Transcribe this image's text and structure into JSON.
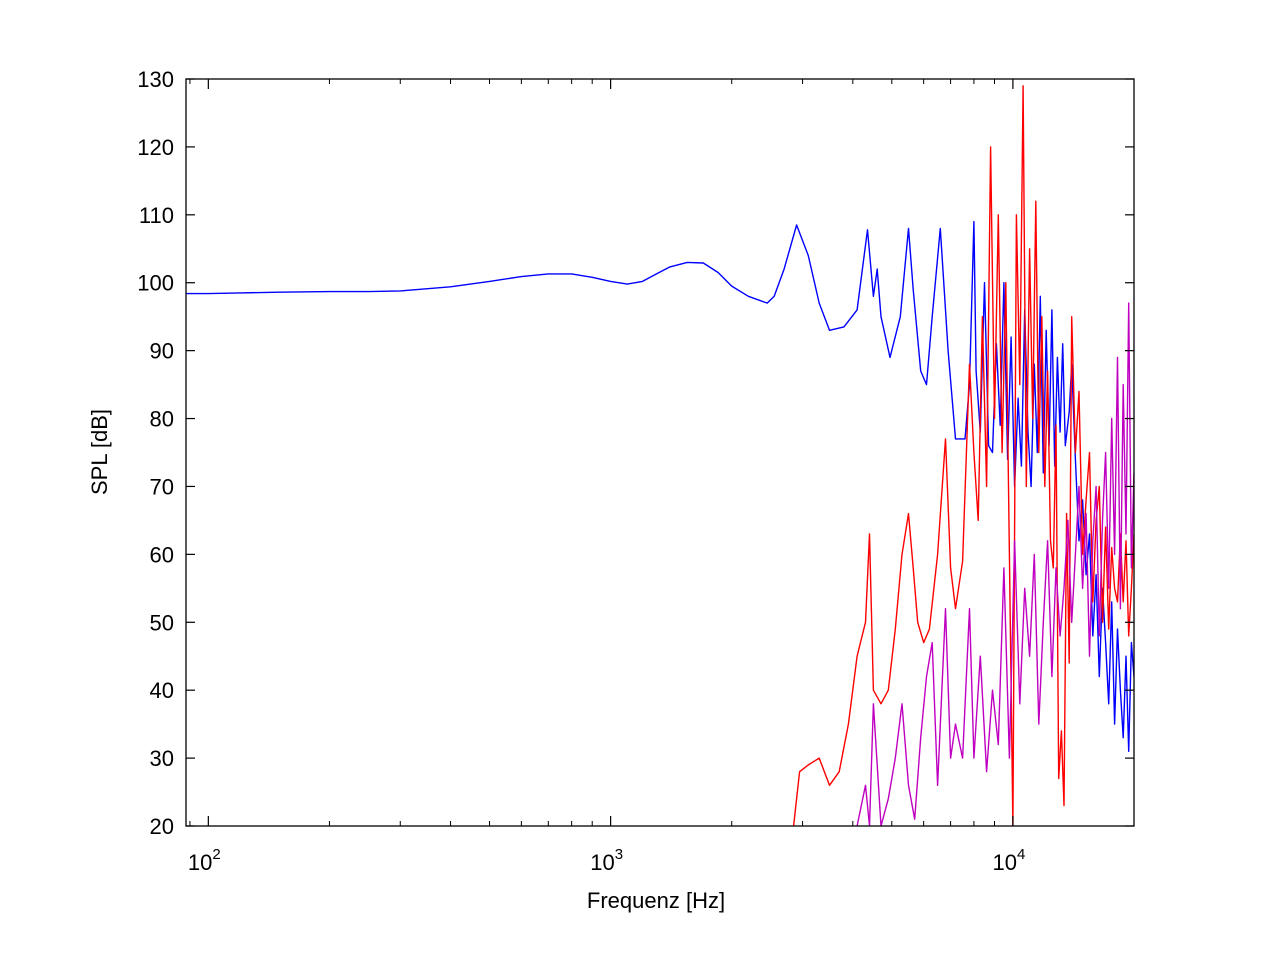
{
  "chart_data": {
    "type": "line",
    "xscale": "log",
    "xlabel": "Frequenz [Hz]",
    "ylabel": "SPL [dB]",
    "xlim": [
      88,
      20000
    ],
    "ylim": [
      20,
      130
    ],
    "yticks": [
      20,
      30,
      40,
      50,
      60,
      70,
      80,
      90,
      100,
      110,
      120,
      130
    ],
    "xticks": [
      {
        "value": 100,
        "base": "10",
        "exp": "2"
      },
      {
        "value": 1000,
        "base": "10",
        "exp": "3"
      },
      {
        "value": 10000,
        "base": "10",
        "exp": "4"
      }
    ],
    "grid": false,
    "legend": "none",
    "series": [
      {
        "color": "#0000ff",
        "x": [
          88,
          100,
          120,
          150,
          200,
          250,
          300,
          400,
          500,
          600,
          700,
          800,
          900,
          1000,
          1100,
          1200,
          1300,
          1400,
          1550,
          1700,
          1850,
          2000,
          2200,
          2450,
          2550,
          2700,
          2900,
          3100,
          3300,
          3500,
          3800,
          4100,
          4350,
          4500,
          4600,
          4700,
          4950,
          5250,
          5500,
          5650,
          5900,
          6100,
          6300,
          6600,
          6900,
          7200,
          7600,
          7800,
          8000,
          8100,
          8300,
          8500,
          8700,
          8900,
          9100,
          9300,
          9500,
          9700,
          9900,
          10100,
          10300,
          10500,
          10700,
          10900,
          11100,
          11300,
          11500,
          11700,
          11900,
          12100,
          12300,
          12500,
          12700,
          12900,
          13100,
          13300,
          13500,
          13800,
          14000,
          14300,
          14600,
          14900,
          15200,
          15500,
          15800,
          16100,
          16400,
          16700,
          17000,
          17300,
          17600,
          17900,
          18200,
          18500,
          18800,
          19100,
          19400,
          19700,
          20000
        ],
        "y": [
          98.4,
          98.4,
          98.5,
          98.6,
          98.7,
          98.7,
          98.8,
          99.4,
          100.2,
          100.9,
          101.3,
          101.3,
          100.8,
          100.2,
          99.8,
          100.2,
          101.3,
          102.3,
          103.0,
          102.9,
          101.5,
          99.5,
          98.0,
          97.0,
          98.0,
          102.0,
          108.5,
          104.0,
          97.0,
          93.0,
          93.5,
          96.0,
          107.8,
          98.0,
          102.0,
          95.0,
          89.0,
          95.0,
          108.0,
          99.0,
          87.0,
          85.0,
          95.0,
          108.0,
          90.0,
          77.0,
          77.0,
          85.0,
          109.0,
          87.0,
          78.0,
          100.0,
          76.0,
          75.0,
          91.0,
          79.0,
          100.0,
          74.0,
          92.0,
          70.0,
          83.0,
          73.0,
          96.0,
          78.0,
          70.0,
          88.0,
          75.0,
          98.0,
          72.0,
          93.0,
          76.0,
          96.0,
          73.0,
          89.0,
          78.0,
          91.0,
          76.0,
          81.0,
          88.0,
          74.0,
          62.0,
          68.0,
          57.0,
          63.0,
          48.0,
          57.0,
          42.0,
          55.0,
          47.0,
          38.0,
          53.0,
          35.0,
          49.0,
          40.0,
          33.0,
          45.0,
          31.0,
          47.0,
          42.0
        ]
      },
      {
        "color": "#ff0000",
        "x": [
          2850,
          2950,
          3100,
          3300,
          3500,
          3700,
          3900,
          4100,
          4300,
          4400,
          4500,
          4700,
          4900,
          5100,
          5300,
          5500,
          5650,
          5800,
          6000,
          6200,
          6500,
          6800,
          7000,
          7200,
          7500,
          7800,
          8000,
          8200,
          8400,
          8600,
          8800,
          9000,
          9200,
          9400,
          9600,
          9800,
          10000,
          10200,
          10400,
          10600,
          10800,
          11000,
          11200,
          11400,
          11600,
          11800,
          12000,
          12200,
          12400,
          12600,
          12800,
          13000,
          13200,
          13400,
          13600,
          13800,
          14000,
          14300,
          14600,
          14900,
          15200,
          15500,
          15800,
          16100,
          16400,
          16700,
          17000,
          17300,
          17600,
          17900,
          18200,
          18500,
          18800,
          19100,
          19400,
          19700,
          20000
        ],
        "y": [
          20.0,
          28.0,
          29.0,
          30.0,
          26.0,
          28.0,
          35.0,
          45.0,
          50.0,
          63.0,
          40.0,
          38.0,
          40.0,
          49.0,
          60.0,
          66.0,
          58.0,
          50.0,
          47.0,
          49.0,
          60.0,
          77.0,
          58.0,
          52.0,
          59.0,
          88.0,
          75.0,
          65.0,
          95.0,
          70.0,
          120.0,
          80.0,
          110.0,
          75.0,
          100.0,
          60.0,
          20.0,
          110.0,
          85.0,
          129.0,
          70.0,
          105.0,
          80.0,
          112.0,
          75.0,
          95.0,
          70.0,
          87.0,
          62.0,
          58.0,
          79.0,
          27.0,
          34.0,
          23.0,
          66.0,
          44.0,
          95.0,
          75.0,
          84.0,
          60.0,
          68.0,
          75.0,
          53.0,
          65.0,
          70.0,
          50.0,
          64.0,
          49.0,
          61.0,
          55.0,
          53.0,
          63.0,
          53.0,
          62.0,
          48.0,
          55.0,
          63.0
        ]
      },
      {
        "color": "#c000c0",
        "x": [
          4100,
          4200,
          4300,
          4400,
          4500,
          4700,
          4900,
          5100,
          5300,
          5500,
          5700,
          5900,
          6100,
          6300,
          6500,
          6800,
          7000,
          7200,
          7500,
          7800,
          8000,
          8300,
          8600,
          8900,
          9200,
          9500,
          9800,
          10100,
          10400,
          10700,
          11000,
          11300,
          11600,
          11900,
          12200,
          12500,
          12800,
          13100,
          13400,
          13700,
          14000,
          14300,
          14600,
          14900,
          15200,
          15500,
          15800,
          16100,
          16400,
          16700,
          17000,
          17300,
          17600,
          17900,
          18200,
          18500,
          18800,
          19100,
          19400,
          19700,
          20000
        ],
        "y": [
          20.0,
          23.0,
          26.0,
          20.0,
          38.0,
          20.0,
          24.0,
          30.0,
          38.0,
          26.0,
          21.0,
          33.0,
          42.0,
          47.0,
          26.0,
          52.0,
          30.0,
          35.0,
          30.0,
          52.0,
          30.0,
          45.0,
          28.0,
          40.0,
          32.0,
          58.0,
          30.0,
          62.0,
          38.0,
          55.0,
          45.0,
          60.0,
          35.0,
          50.0,
          62.0,
          42.0,
          58.0,
          48.0,
          55.0,
          65.0,
          50.0,
          60.0,
          70.0,
          55.0,
          66.0,
          45.0,
          62.0,
          70.0,
          48.0,
          65.0,
          75.0,
          55.0,
          80.0,
          60.0,
          89.0,
          52.0,
          85.0,
          63.0,
          97.0,
          58.0,
          72.0
        ]
      }
    ]
  }
}
